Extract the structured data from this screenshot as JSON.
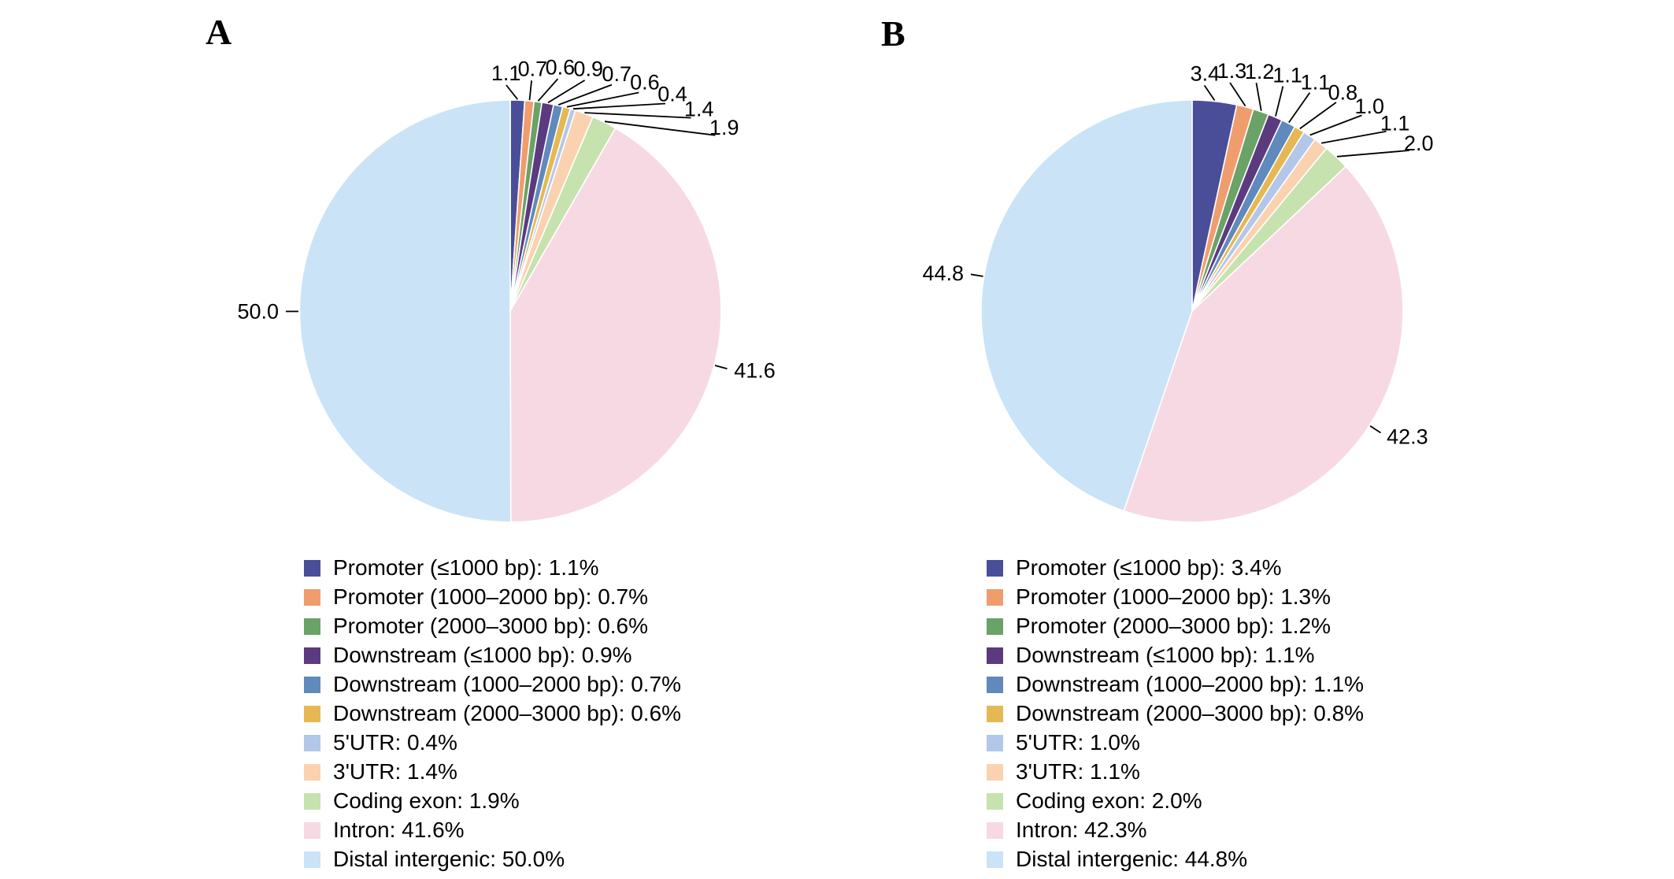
{
  "chart_data": [
    {
      "type": "pie",
      "title": "A",
      "categories": [
        "Promoter (≤1000 bp)",
        "Promoter (1000–2000 bp)",
        "Promoter (2000–3000 bp)",
        "Downstream (≤1000 bp)",
        "Downstream (1000–2000 bp)",
        "Downstream (2000–3000 bp)",
        "5'UTR",
        "3'UTR",
        "Coding exon",
        "Intron",
        "Distal intergenic"
      ],
      "values": [
        1.1,
        0.7,
        0.6,
        0.9,
        0.7,
        0.6,
        0.4,
        1.4,
        1.9,
        41.6,
        50.0
      ],
      "slice_labels": [
        "1.1",
        "0.7",
        "0.6",
        "0.9",
        "0.7",
        "0.6",
        "0.4",
        "1.4",
        "1.9",
        "41.6",
        "50.0"
      ],
      "legend_entries": [
        "Promoter (≤1000 bp): 1.1%",
        "Promoter (1000–2000 bp): 0.7%",
        "Promoter (2000–3000 bp): 0.6%",
        "Downstream (≤1000 bp): 0.9%",
        "Downstream (1000–2000 bp): 0.7%",
        "Downstream (2000–3000 bp): 0.6%",
        "5'UTR: 0.4%",
        "3'UTR: 1.4%",
        "Coding exon: 1.9%",
        "Intron: 41.6%",
        "Distal intergenic: 50.0%"
      ],
      "colors": [
        "#4a4e99",
        "#f09d6e",
        "#6ba267",
        "#5c3a80",
        "#6089bc",
        "#e5b854",
        "#b3c7e9",
        "#fad2b0",
        "#c6e2ae",
        "#f7d9e4",
        "#cae3f7"
      ],
      "start_angle": "12 o'clock, clockwise",
      "legend_position": "bottom",
      "label_color": "#000000"
    },
    {
      "type": "pie",
      "title": "B",
      "categories": [
        "Promoter (≤1000 bp)",
        "Promoter (1000–2000 bp)",
        "Promoter (2000–3000 bp)",
        "Downstream (≤1000 bp)",
        "Downstream (1000–2000 bp)",
        "Downstream (2000–3000 bp)",
        "5'UTR",
        "3'UTR",
        "Coding exon",
        "Intron",
        "Distal intergenic"
      ],
      "values": [
        3.4,
        1.3,
        1.2,
        1.1,
        1.1,
        0.8,
        1.0,
        1.1,
        2.0,
        42.3,
        44.8
      ],
      "slice_labels": [
        "3.4",
        "1.3",
        "1.2",
        "1.1",
        "1.1",
        "0.8",
        "1.0",
        "1.1",
        "2.0",
        "42.3",
        "44.8"
      ],
      "legend_entries": [
        "Promoter (≤1000 bp): 3.4%",
        "Promoter (1000–2000 bp): 1.3%",
        "Promoter (2000–3000 bp): 1.2%",
        "Downstream (≤1000 bp): 1.1%",
        "Downstream (1000–2000 bp): 1.1%",
        "Downstream (2000–3000 bp): 0.8%",
        "5'UTR: 1.0%",
        "3'UTR: 1.1%",
        "Coding exon: 2.0%",
        "Intron: 42.3%",
        "Distal intergenic: 44.8%"
      ],
      "colors": [
        "#4a4e99",
        "#f09d6e",
        "#6ba267",
        "#5c3a80",
        "#6089bc",
        "#e5b854",
        "#b3c7e9",
        "#fad2b0",
        "#c6e2ae",
        "#f7d9e4",
        "#cae3f7"
      ],
      "start_angle": "12 o'clock, clockwise",
      "legend_position": "bottom",
      "label_color": "#000000"
    }
  ],
  "background_color": "#ffffff"
}
